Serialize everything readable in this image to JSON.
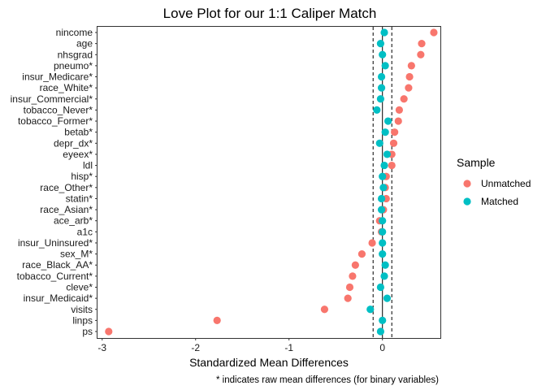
{
  "chart_data": {
    "type": "scatter",
    "title": "Love Plot for our 1:1 Caliper Match",
    "xlabel": "Standardized Mean Differences",
    "ylabel": "",
    "caption": "* indicates raw mean differences (for binary variables)",
    "xlim": [
      -3.05,
      0.62
    ],
    "x_ticks": [
      -3,
      -2,
      -1,
      0
    ],
    "reference_lines": [
      {
        "x": 0,
        "style": "solid"
      },
      {
        "x": -0.1,
        "style": "dashed"
      },
      {
        "x": 0.1,
        "style": "dashed"
      }
    ],
    "grid": false,
    "legend": {
      "title": "Sample",
      "position": "right"
    },
    "categories": [
      "nincome",
      "age",
      "nhsgrad",
      "pneumo*",
      "insur_Medicare*",
      "race_White*",
      "insur_Commercial*",
      "tobacco_Never*",
      "tobacco_Former*",
      "betab*",
      "depr_dx*",
      "eyeex*",
      "ldl",
      "hisp*",
      "race_Other*",
      "statin*",
      "race_Asian*",
      "ace_arb*",
      "a1c",
      "insur_Uninsured*",
      "sex_M*",
      "race_Black_AA*",
      "tobacco_Current*",
      "cleve*",
      "insur_Medicaid*",
      "visits",
      "linps",
      "ps"
    ],
    "series": [
      {
        "name": "Unmatched",
        "color": "#F8766D",
        "values": [
          0.55,
          0.42,
          0.41,
          0.31,
          0.29,
          0.28,
          0.23,
          0.18,
          0.17,
          0.13,
          0.12,
          0.1,
          0.1,
          0.04,
          0.03,
          0.04,
          0.01,
          -0.03,
          -0.01,
          -0.11,
          -0.22,
          -0.29,
          -0.32,
          -0.35,
          -0.37,
          -0.62,
          -1.77,
          -2.93
        ]
      },
      {
        "name": "Matched",
        "color": "#00BFC4",
        "values": [
          0.02,
          -0.02,
          0.0,
          0.03,
          -0.01,
          -0.01,
          -0.02,
          -0.06,
          0.06,
          0.03,
          -0.03,
          0.05,
          0.02,
          0.0,
          0.01,
          -0.01,
          -0.01,
          0.0,
          0.0,
          0.0,
          0.0,
          0.03,
          0.02,
          -0.02,
          0.05,
          -0.13,
          0.0,
          -0.02
        ]
      }
    ]
  }
}
